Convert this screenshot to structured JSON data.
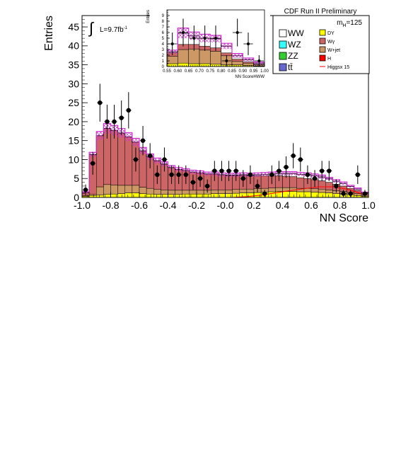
{
  "header": {
    "experiment": "CDF Run II Preliminary",
    "mass_label_base": "m",
    "mass_label_sub": "H",
    "mass_label_value": "=125"
  },
  "lumi": {
    "label": "L=9.7fb",
    "sup": "-1",
    "integral_sign": "∫"
  },
  "chart_data": [
    {
      "type": "bar",
      "title": "",
      "xlabel": "NN Score",
      "ylabel": "Entries",
      "xlim": [
        -1.0,
        1.0
      ],
      "ylim": [
        0,
        48
      ],
      "x_ticks": [
        "-1.0",
        "-0.8",
        "-0.6",
        "-0.4",
        "-0.2",
        "-0.0",
        "0.2",
        "0.4",
        "0.6",
        "0.8",
        "1.0"
      ],
      "y_ticks": [
        "0",
        "5",
        "10",
        "15",
        "20",
        "25",
        "30",
        "35",
        "40",
        "45"
      ],
      "bin_edges": [
        -1.0,
        -0.95,
        -0.9,
        -0.85,
        -0.8,
        -0.75,
        -0.7,
        -0.65,
        -0.6,
        -0.55,
        -0.5,
        -0.45,
        -0.4,
        -0.35,
        -0.3,
        -0.25,
        -0.2,
        -0.15,
        -0.1,
        -0.05,
        0.0,
        0.05,
        0.1,
        0.15,
        0.2,
        0.25,
        0.3,
        0.35,
        0.4,
        0.45,
        0.5,
        0.55,
        0.6,
        0.65,
        0.7,
        0.75,
        0.8,
        0.85,
        0.9,
        0.95,
        1.0
      ],
      "stack_order": [
        "DY",
        "W+jet",
        "Wγ",
        "WW"
      ],
      "series": [
        {
          "name": "DY",
          "color": "#ffff00",
          "values": [
            0.3,
            0.5,
            0.6,
            0.8,
            0.9,
            1.0,
            1.2,
            1.2,
            1.0,
            0.9,
            0.8,
            0.8,
            0.8,
            0.8,
            0.9,
            0.9,
            0.9,
            0.9,
            1.0,
            1.0,
            1.0,
            1.1,
            1.2,
            1.2,
            1.3,
            1.4,
            1.5,
            1.6,
            1.6,
            1.6,
            1.5,
            1.5,
            1.4,
            1.3,
            1.2,
            1.0,
            0.9,
            0.7,
            0.5,
            0.3
          ]
        },
        {
          "name": "W+jet",
          "color": "#cc9966",
          "values": [
            0.2,
            0.3,
            2.2,
            2.6,
            2.4,
            2.2,
            2.0,
            2.0,
            1.7,
            1.5,
            1.3,
            1.2,
            1.1,
            1.1,
            1.0,
            1.0,
            1.0,
            1.0,
            1.0,
            1.0,
            1.0,
            1.0,
            1.0,
            1.0,
            1.0,
            1.0,
            1.0,
            1.0,
            1.0,
            1.0,
            0.9,
            0.9,
            0.9,
            0.9,
            0.8,
            0.8,
            0.7,
            0.6,
            0.5,
            0.3
          ]
        },
        {
          "name": "Wγ",
          "color": "#cc6666",
          "values": [
            0.8,
            10.5,
            13.5,
            14.8,
            14.4,
            13.8,
            12.8,
            11.4,
            9.6,
            8.3,
            7.6,
            6.8,
            6.0,
            5.5,
            5.2,
            4.8,
            4.6,
            4.3,
            4.2,
            4.0,
            3.8,
            3.7,
            3.6,
            3.5,
            3.4,
            3.3,
            3.2,
            3.1,
            3.0,
            2.9,
            2.8,
            2.6,
            2.4,
            2.2,
            2.0,
            1.7,
            1.4,
            1.1,
            0.8,
            0.4
          ]
        },
        {
          "name": "WW",
          "color": "#ffffff",
          "values": [
            0.0,
            0.0,
            0.0,
            0.0,
            0.0,
            0.0,
            0.0,
            0.0,
            0.0,
            0.0,
            0.0,
            0.0,
            0.0,
            0.0,
            0.0,
            0.0,
            0.0,
            0.0,
            0.0,
            0.0,
            0.1,
            0.1,
            0.2,
            0.2,
            0.3,
            0.4,
            0.5,
            0.6,
            0.7,
            0.8,
            0.9,
            1.0,
            1.0,
            1.0,
            0.9,
            0.8,
            0.7,
            0.5,
            0.4,
            0.2
          ]
        }
      ],
      "uncertainty_band": {
        "color": "#cc33cc",
        "values": [
          0.2,
          0.6,
          1.1,
          1.3,
          1.3,
          1.2,
          1.1,
          1.0,
          0.9,
          0.8,
          0.7,
          0.6,
          0.5,
          0.5,
          0.5,
          0.5,
          0.5,
          0.5,
          0.5,
          0.5,
          0.5,
          0.5,
          0.5,
          0.5,
          0.5,
          0.5,
          0.5,
          0.5,
          0.5,
          0.5,
          0.5,
          0.5,
          0.5,
          0.5,
          0.4,
          0.4,
          0.4,
          0.3,
          0.3,
          0.2
        ]
      },
      "signal": {
        "name": "Higgsx 15",
        "color": "#ff0000",
        "x": [
          -0.95,
          -0.85,
          -0.75,
          -0.65,
          -0.55,
          -0.45,
          -0.35,
          -0.25,
          -0.15,
          -0.05,
          0.05,
          0.15,
          0.25,
          0.35,
          0.45,
          0.55,
          0.65,
          0.75,
          0.85,
          0.95
        ],
        "y": [
          0.0,
          0.0,
          0.0,
          0.0,
          0.0,
          0.0,
          0.0,
          0.0,
          0.0,
          0.0,
          0.0,
          0.2,
          0.6,
          1.2,
          1.8,
          2.3,
          2.8,
          2.8,
          2.2,
          1.0
        ]
      },
      "data_points": {
        "name": "Data",
        "x": [
          -0.975,
          -0.925,
          -0.875,
          -0.825,
          -0.775,
          -0.725,
          -0.675,
          -0.625,
          -0.575,
          -0.525,
          -0.475,
          -0.425,
          -0.375,
          -0.325,
          -0.275,
          -0.225,
          -0.175,
          -0.125,
          -0.075,
          -0.025,
          0.025,
          0.075,
          0.125,
          0.175,
          0.225,
          0.275,
          0.325,
          0.375,
          0.425,
          0.475,
          0.525,
          0.575,
          0.625,
          0.675,
          0.725,
          0.775,
          0.825,
          0.875,
          0.925,
          0.975
        ],
        "y": [
          2,
          9,
          25,
          20,
          20,
          21,
          23,
          10,
          15,
          11,
          6,
          10,
          6,
          6,
          6,
          4,
          5,
          3,
          7,
          7,
          7,
          7,
          5,
          6,
          3,
          1,
          6,
          7,
          8,
          11,
          10,
          6,
          5,
          7,
          7,
          3,
          1,
          1,
          6,
          1
        ]
      }
    },
    {
      "type": "bar",
      "title": "",
      "xlabel": "NN ScoreHWW",
      "ylabel": "Entries",
      "xlim": [
        0.55,
        1.0
      ],
      "ylim": [
        0,
        10
      ],
      "x_ticks": [
        "0.55",
        "0.60",
        "0.65",
        "0.70",
        "0.75",
        "0.80",
        "0.85",
        "0.90",
        "0.95",
        "1.00"
      ],
      "y_ticks": [
        "0",
        "1",
        "2",
        "3",
        "4",
        "5",
        "6",
        "7",
        "8",
        "9"
      ],
      "bin_edges": [
        0.55,
        0.6,
        0.65,
        0.7,
        0.75,
        0.8,
        0.85,
        0.9,
        0.95,
        1.0
      ],
      "series": [
        {
          "name": "DY",
          "values": [
            0.5,
            0.6,
            0.5,
            0.5,
            0.4,
            0.3,
            0.3,
            0.2,
            0.1
          ]
        },
        {
          "name": "W+jet",
          "values": [
            1.3,
            2.4,
            2.6,
            2.4,
            2.3,
            1.6,
            0.6,
            0.4,
            0.2
          ]
        },
        {
          "name": "Wγ",
          "values": [
            0.6,
            0.9,
            0.8,
            0.7,
            0.6,
            0.5,
            0.4,
            0.2,
            0.1
          ]
        },
        {
          "name": "WW",
          "values": [
            0.2,
            2.0,
            1.5,
            1.4,
            1.6,
            1.2,
            0.6,
            0.4,
            0.2
          ]
        }
      ],
      "uncertainty_band": {
        "values": [
          0.3,
          0.9,
          0.7,
          0.7,
          0.6,
          0.5,
          0.4,
          0.3,
          0.2
        ]
      },
      "data_points": {
        "x": [
          0.575,
          0.625,
          0.675,
          0.725,
          0.775,
          0.825,
          0.875,
          0.925,
          0.975
        ],
        "y": [
          4,
          6,
          5,
          5,
          5,
          1,
          6,
          4,
          1
        ]
      }
    }
  ],
  "legend": {
    "left": [
      {
        "label": "WW",
        "color": "#ffffff"
      },
      {
        "label": "WZ",
        "color": "#33ffff"
      },
      {
        "label": "ZZ",
        "color": "#33cc33"
      },
      {
        "label": "tt̄",
        "color": "#6666cc"
      }
    ],
    "right": [
      {
        "label": "DY",
        "color": "#ffff00"
      },
      {
        "label": "Wγ",
        "color": "#cc6666"
      },
      {
        "label": "W+jet",
        "color": "#cc9966"
      },
      {
        "label": "H",
        "color": "#ff0000"
      },
      {
        "label": "Higgsx 15",
        "color": "#ff0000",
        "line": true
      }
    ]
  }
}
